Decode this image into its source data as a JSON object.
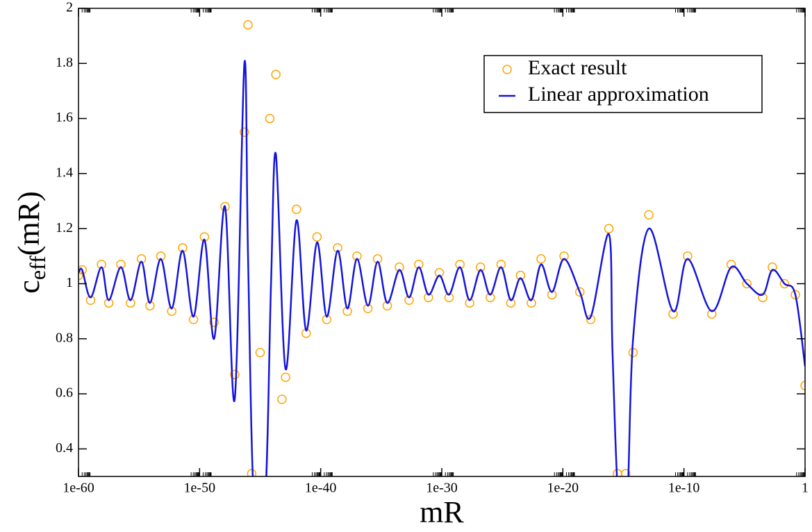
{
  "chart_data": {
    "type": "scatter-line",
    "xlabel": "mR",
    "ylabel": {
      "base": "c",
      "sub": "eff",
      "rest": "(mR)"
    },
    "xscale": "log",
    "xlim": [
      1e-60,
      1
    ],
    "ylim": [
      0.3,
      2
    ],
    "xticks": [
      {
        "value": 1e-60,
        "label": "1e-60"
      },
      {
        "value": 1e-50,
        "label": "1e-50"
      },
      {
        "value": 1e-40,
        "label": "1e-40"
      },
      {
        "value": 1e-30,
        "label": "1e-30"
      },
      {
        "value": 1e-20,
        "label": "1e-20"
      },
      {
        "value": 1e-10,
        "label": "1e-10"
      },
      1
    ],
    "yticks": [
      0.4,
      0.6,
      0.8,
      1,
      1.2,
      1.4,
      1.6,
      1.8,
      2
    ],
    "legend": "upper right",
    "series": [
      {
        "name": "Exact result",
        "color": "#ffa500",
        "style": "circles",
        "x": [
          1e-60,
          2e-60,
          1e-59,
          7.94e-59,
          3.16e-58,
          3.16e-57,
          2e-56,
          1.58e-55,
          7.94e-55,
          6.31e-54,
          5.01e-53,
          3.98e-52,
          3.16e-51,
          2.51e-50,
          1.58e-49,
          1.26e-48,
          7.94e-48,
          5.01e-47,
          1e-46,
          2e-46,
          1e-45,
          6.31e-45,
          2e-44,
          6.31e-44,
          1.26e-43,
          1e-42,
          6.31e-42,
          5.01e-41,
          3.16e-40,
          2.51e-39,
          1.58e-38,
          1e-37,
          7.94e-37,
          5.01e-36,
          3.16e-35,
          3.16e-34,
          2e-33,
          1.26e-32,
          7.94e-32,
          6.31e-31,
          3.98e-30,
          3.16e-29,
          2e-28,
          1.58e-27,
          1e-26,
          7.94e-26,
          5.01e-25,
          3.16e-24,
          2.51e-23,
          1.58e-22,
          1.26e-21,
          1.26e-20,
          2.51e-19,
          2e-18,
          6.31e-17,
          3.16e-16,
          1.58e-15,
          6.31e-15,
          1.26e-13,
          1.26e-11,
          2e-10,
          2e-08,
          7.94e-07,
          1.58e-05,
          0.000316,
          0.002,
          0.02,
          0.158,
          1
        ],
        "values": [
          1.03,
          1.05,
          0.94,
          1.07,
          0.93,
          1.07,
          0.93,
          1.09,
          0.92,
          1.1,
          0.9,
          1.13,
          0.87,
          1.17,
          0.86,
          1.28,
          0.67,
          1.55,
          1.94,
          0.31,
          0.75,
          1.6,
          1.76,
          0.58,
          0.66,
          1.27,
          0.82,
          1.17,
          0.87,
          1.13,
          0.9,
          1.1,
          0.91,
          1.09,
          0.92,
          1.06,
          0.94,
          1.07,
          0.95,
          1.04,
          0.95,
          1.07,
          0.93,
          1.06,
          0.95,
          1.07,
          0.93,
          1.03,
          0.93,
          1.09,
          0.96,
          1.1,
          0.97,
          0.87,
          1.2,
          0.31,
          0.31,
          0.75,
          1.25,
          0.89,
          1.1,
          0.89,
          1.07,
          1.0,
          0.95,
          1.06,
          1.0,
          0.96,
          0.63
        ]
      },
      {
        "name": "Linear approximation",
        "color": "#1414dc",
        "style": "line",
        "x": [
          1e-60,
          2e-60,
          1e-59,
          7.94e-59,
          3.16e-58,
          3.16e-57,
          2e-56,
          1.58e-55,
          7.94e-55,
          6.31e-54,
          5.01e-53,
          3.98e-52,
          3.16e-51,
          2.51e-50,
          1.58e-49,
          1.26e-48,
          7.94e-48,
          5.01e-47,
          1e-46,
          3.16e-46,
          2.51e-45,
          7.94e-45,
          2e-44,
          1.26e-43,
          1e-42,
          6.31e-42,
          5.01e-41,
          3.16e-40,
          2.51e-39,
          1.58e-38,
          1e-37,
          7.94e-37,
          5.01e-36,
          3.16e-35,
          3.16e-34,
          2e-33,
          1.26e-32,
          7.94e-32,
          6.31e-31,
          3.98e-30,
          3.16e-29,
          2e-28,
          1.58e-27,
          1e-26,
          7.94e-26,
          5.01e-25,
          3.16e-24,
          2.51e-23,
          1.58e-22,
          1.26e-21,
          1.26e-20,
          2.51e-19,
          2e-18,
          6.31e-17,
          1.26e-16,
          3.98e-16,
          2e-15,
          6.31e-15,
          1.26e-13,
          1.26e-11,
          2e-10,
          2e-08,
          7.94e-07,
          1.58e-05,
          0.000316,
          0.002,
          0.02,
          0.158,
          1
        ],
        "values": [
          1.04,
          1.05,
          0.95,
          1.06,
          0.94,
          1.06,
          0.94,
          1.08,
          0.93,
          1.09,
          0.91,
          1.12,
          0.88,
          1.16,
          0.8,
          1.28,
          0.58,
          1.8,
          1.1,
          0.2,
          0.2,
          1.0,
          1.47,
          0.69,
          1.23,
          0.83,
          1.15,
          0.88,
          1.12,
          0.91,
          1.09,
          0.92,
          1.08,
          0.93,
          1.05,
          0.95,
          1.06,
          0.96,
          1.03,
          0.96,
          1.06,
          0.94,
          1.05,
          0.96,
          1.06,
          0.94,
          1.02,
          0.94,
          1.07,
          0.97,
          1.09,
          0.97,
          0.88,
          1.18,
          0.75,
          0.2,
          0.2,
          0.8,
          1.2,
          0.9,
          1.09,
          0.9,
          1.06,
          1.0,
          0.96,
          1.05,
          1.0,
          0.96,
          0.7
        ]
      }
    ]
  }
}
